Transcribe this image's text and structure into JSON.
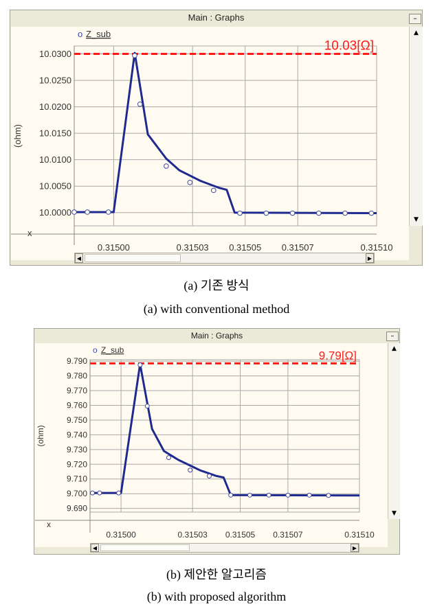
{
  "charts": [
    {
      "window_title": "Main : Graphs",
      "minimize_label": "–",
      "x_axis_letter": "x",
      "caption_ko": "(a)  기존  방식",
      "caption_en": "(a)  with  conventional  method",
      "annotation": "10.03[Ω]",
      "legend_symbol": "o",
      "colors": {
        "series": "#1f2a8f",
        "marker": "#3b4aa6",
        "threshold": "#ff1a1a",
        "grid": "#a9a9a9",
        "plot_bg": "#fffbf0"
      }
    },
    {
      "window_title": "Main : Graphs",
      "minimize_label": "–",
      "x_axis_letter": "x",
      "caption_ko": "(b)  제안한  알고리즘",
      "caption_en": "(b)  with  proposed  algorithm",
      "annotation": "9.79[Ω]",
      "legend_symbol": "o",
      "colors": {
        "series": "#1f2a8f",
        "marker": "#3b4aa6",
        "threshold": "#ff1a1a",
        "grid": "#a9a9a9",
        "plot_bg": "#fffbf0"
      }
    }
  ],
  "chart_data": [
    {
      "type": "line",
      "title": "Main : Graphs",
      "xlabel": "x",
      "ylabel": "(ohm)",
      "xlim": [
        0.314985,
        0.3151
      ],
      "ylim": [
        9.9975,
        10.0315
      ],
      "grid": true,
      "legend_position": "top-left",
      "x_ticks": [
        0.315,
        0.31503,
        0.31505,
        0.31507,
        0.3151
      ],
      "x_tick_labels": [
        "0.31500",
        "0.31503",
        "0.31505",
        "0.31507",
        "0.31510"
      ],
      "y_ticks": [
        10.0,
        10.005,
        10.01,
        10.015,
        10.02,
        10.025,
        10.03
      ],
      "y_tick_labels": [
        "10.0000",
        "10.0050",
        "10.0100",
        "10.0150",
        "10.0200",
        "10.0250",
        "10.0300"
      ],
      "threshold": {
        "value": 10.03,
        "label": "10.03[Ω]"
      },
      "series": [
        {
          "name": "Z_sub",
          "x": [
            0.314985,
            0.315,
            0.315008,
            0.315013,
            0.31502,
            0.315025,
            0.315033,
            0.31504,
            0.315043,
            0.315046,
            0.3151
          ],
          "y": [
            10.0001,
            10.0001,
            10.0302,
            10.0148,
            10.0102,
            10.008,
            10.006,
            10.0047,
            10.0043,
            10.0,
            9.9999
          ]
        }
      ],
      "markers": [
        {
          "x": 0.314985,
          "y": 10.0001
        },
        {
          "x": 0.31499,
          "y": 10.0001
        },
        {
          "x": 0.314998,
          "y": 10.0001
        },
        {
          "x": 0.315008,
          "y": 10.0297
        },
        {
          "x": 0.31501,
          "y": 10.0205
        },
        {
          "x": 0.31502,
          "y": 10.0088
        },
        {
          "x": 0.315029,
          "y": 10.0057
        },
        {
          "x": 0.315038,
          "y": 10.0042
        },
        {
          "x": 0.315048,
          "y": 9.9999
        },
        {
          "x": 0.315058,
          "y": 9.9999
        },
        {
          "x": 0.315068,
          "y": 9.9999
        },
        {
          "x": 0.315078,
          "y": 9.9999
        },
        {
          "x": 0.315088,
          "y": 9.9999
        },
        {
          "x": 0.315098,
          "y": 9.9999
        }
      ]
    },
    {
      "type": "line",
      "title": "Main : Graphs",
      "xlabel": "x",
      "ylabel": "(ohm)",
      "xlim": [
        0.314987,
        0.3151
      ],
      "ylim": [
        9.6875,
        9.791
      ],
      "grid": true,
      "legend_position": "top-left",
      "x_ticks": [
        0.315,
        0.31503,
        0.31505,
        0.31507,
        0.3151
      ],
      "x_tick_labels": [
        "0.31500",
        "0.31503",
        "0.31505",
        "0.31507",
        "0.31510"
      ],
      "y_ticks": [
        9.69,
        9.7,
        9.71,
        9.72,
        9.73,
        9.74,
        9.75,
        9.76,
        9.77,
        9.78,
        9.79
      ],
      "y_tick_labels": [
        "9.690",
        "9.700",
        "9.710",
        "9.720",
        "9.730",
        "9.740",
        "9.750",
        "9.760",
        "9.770",
        "9.780",
        "9.790"
      ],
      "threshold": {
        "value": 9.7885,
        "label": "9.79[Ω]"
      },
      "series": [
        {
          "name": "Z_sub",
          "x": [
            0.314987,
            0.315,
            0.315008,
            0.315013,
            0.315018,
            0.315024,
            0.315033,
            0.31504,
            0.315043,
            0.315046,
            0.3151
          ],
          "y": [
            9.7005,
            9.7005,
            9.788,
            9.744,
            9.729,
            9.723,
            9.716,
            9.712,
            9.711,
            9.699,
            9.6988
          ]
        }
      ],
      "markers": [
        {
          "x": 0.314988,
          "y": 9.7005
        },
        {
          "x": 0.314991,
          "y": 9.7005
        },
        {
          "x": 0.314999,
          "y": 9.7005
        },
        {
          "x": 0.315008,
          "y": 9.7875
        },
        {
          "x": 0.315011,
          "y": 9.7595
        },
        {
          "x": 0.31502,
          "y": 9.7245
        },
        {
          "x": 0.315029,
          "y": 9.716
        },
        {
          "x": 0.315037,
          "y": 9.712
        },
        {
          "x": 0.315046,
          "y": 9.699
        },
        {
          "x": 0.315054,
          "y": 9.699
        },
        {
          "x": 0.315062,
          "y": 9.699
        },
        {
          "x": 0.31507,
          "y": 9.699
        },
        {
          "x": 0.315079,
          "y": 9.699
        },
        {
          "x": 0.315087,
          "y": 9.6988
        }
      ]
    }
  ]
}
